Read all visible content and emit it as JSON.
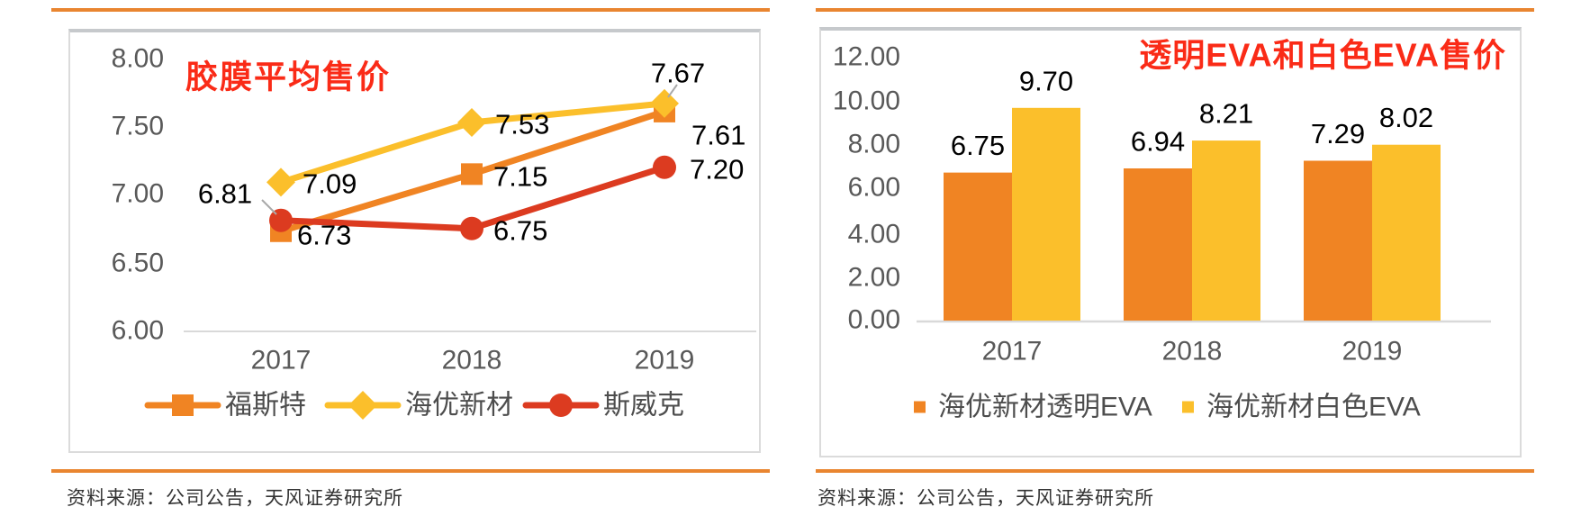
{
  "page": {
    "background": "#ffffff",
    "rule_color": "#E98530",
    "box_border_color": "#DBDBDB",
    "axis_line_color": "#D9D9D9",
    "leader_line_color": "#A9A9A9",
    "legend_text_color": "#4d4d4d",
    "source_color": "#333333"
  },
  "left_panel": {
    "source_text": "资料来源：公司公告，天风证券研究所"
  },
  "right_panel": {
    "source_text": "资料来源：公司公告，天风证券研究所"
  },
  "chart_data": [
    {
      "type": "line",
      "title": "胶膜平均售价",
      "title_color": "#FA2B17",
      "categories": [
        "2017",
        "2018",
        "2019"
      ],
      "series": [
        {
          "name": "福斯特",
          "values": [
            6.73,
            7.15,
            7.61
          ],
          "color": "#F08423",
          "marker": "square"
        },
        {
          "name": "海优新材",
          "values": [
            7.09,
            7.53,
            7.67
          ],
          "color": "#FBBF2B",
          "marker": "diamond"
        },
        {
          "name": "斯威克",
          "values": [
            6.81,
            6.75,
            7.2
          ],
          "color": "#DC3B20",
          "marker": "circle"
        }
      ],
      "ylim": [
        6.0,
        8.0
      ],
      "ytick_labels": [
        "8.00",
        "7.50",
        "7.00",
        "6.50",
        "6.00"
      ],
      "grid": false,
      "legend_position": "bottom",
      "axis_label_color": "#595959",
      "data_label_color": "#000000"
    },
    {
      "type": "bar",
      "title": "透明EVA和白色EVA售价",
      "title_color": "#FA2B17",
      "categories": [
        "2017",
        "2018",
        "2019"
      ],
      "series": [
        {
          "name": "海优新材透明EVA",
          "values": [
            6.75,
            6.94,
            7.29
          ],
          "color": "#F08423"
        },
        {
          "name": "海优新材白色EVA",
          "values": [
            9.7,
            8.21,
            8.02
          ],
          "color": "#FBBF2B"
        }
      ],
      "ylim": [
        0,
        12
      ],
      "ytick_labels": [
        "12.00",
        "10.00",
        "8.00",
        "6.00",
        "4.00",
        "2.00",
        "0.00"
      ],
      "grid": false,
      "legend_position": "bottom",
      "axis_label_color": "#595959",
      "data_label_color": "#000000"
    }
  ]
}
